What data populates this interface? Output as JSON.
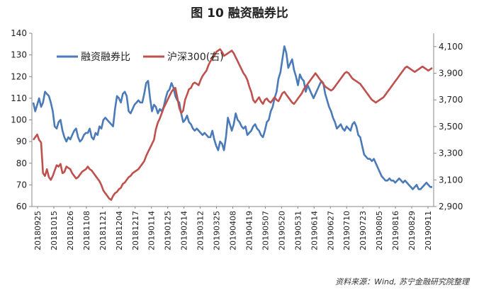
{
  "figure_title": "图 10  融资融券比",
  "source": "资料来源：Wind, 苏宁金融研究院整理",
  "colors": {
    "left_series": "#4a7ab7",
    "right_series": "#c0504d",
    "axis": "#888888",
    "text": "#222222"
  },
  "chart_data": {
    "type": "line",
    "title": "图 10  融资融券比",
    "left_axis": {
      "ylim": [
        60,
        140
      ],
      "ticks": [
        60,
        70,
        80,
        90,
        100,
        110,
        120,
        130,
        140
      ]
    },
    "right_axis": {
      "ylim": [
        2900,
        4200
      ],
      "ticks": [
        "2,900",
        "3,100",
        "3,300",
        "3,500",
        "3,700",
        "3,900",
        "4,100"
      ],
      "tick_values": [
        2900,
        3100,
        3300,
        3500,
        3700,
        3900,
        4100
      ]
    },
    "x_tick_labels": [
      "20180925",
      "20181015",
      "20181026",
      "20181108",
      "20181121",
      "20181204",
      "20181217",
      "20190114",
      "20190125",
      "20190214",
      "20190312",
      "20190325",
      "20190408",
      "20190419",
      "20190507",
      "20190520",
      "20190531",
      "20190614",
      "20190627",
      "20190710",
      "20190723",
      "20190805",
      "20190816",
      "20190829",
      "20190911"
    ],
    "legend": [
      "融资融券比",
      "沪深300(右)"
    ],
    "legend_position": "top-left",
    "series": [
      {
        "name": "融资融券比",
        "axis": "left",
        "values": [
          108,
          104,
          107,
          110,
          106,
          108,
          113,
          112,
          111,
          108,
          104,
          97,
          96,
          99,
          100,
          95,
          92,
          90,
          92,
          91,
          93,
          95,
          96,
          92,
          90,
          91,
          93,
          94,
          94,
          96,
          92,
          91,
          94,
          93,
          97,
          96,
          100,
          101,
          100,
          99,
          98,
          97,
          105,
          111,
          110,
          108,
          112,
          113,
          111,
          104,
          103,
          105,
          107,
          108,
          109,
          108,
          108,
          112,
          117,
          118,
          110,
          104,
          107,
          106,
          103,
          105,
          104,
          106,
          110,
          113,
          114,
          117,
          115,
          111,
          109,
          108,
          103,
          99,
          100,
          102,
          99,
          98,
          96,
          95,
          96,
          95,
          94,
          93,
          94,
          93,
          92,
          92,
          95,
          91,
          88,
          86,
          90,
          89,
          86,
          92,
          101,
          98,
          95,
          98,
          103,
          100,
          99,
          97,
          96,
          97,
          93,
          94,
          95,
          97,
          98,
          96,
          95,
          93,
          92,
          95,
          99,
          100,
          104,
          106,
          110,
          113,
          119,
          122,
          128,
          134,
          131,
          124,
          126,
          128,
          123,
          120,
          116,
          121,
          119,
          118,
          113,
          116,
          114,
          112,
          110,
          112,
          114,
          116,
          118,
          117,
          112,
          109,
          106,
          104,
          101,
          99,
          96,
          97,
          98,
          96,
          95,
          97,
          96,
          95,
          98,
          99,
          97,
          93,
          92,
          88,
          84,
          83,
          82,
          82,
          81,
          82,
          80,
          78,
          76,
          74,
          73,
          72,
          72,
          73,
          72,
          72,
          71,
          72,
          73,
          72,
          71,
          72,
          71,
          70,
          69,
          68,
          69,
          70,
          68,
          68,
          69,
          70,
          71,
          70,
          69,
          69
        ]
      },
      {
        "name": "沪深300(右)",
        "axis": "right",
        "values": [
          3400,
          3420,
          3440,
          3400,
          3380,
          3150,
          3130,
          3180,
          3120,
          3100,
          3130,
          3170,
          3210,
          3200,
          3220,
          3150,
          3160,
          3200,
          3190,
          3180,
          3150,
          3130,
          3110,
          3120,
          3140,
          3160,
          3170,
          3180,
          3200,
          3180,
          3170,
          3150,
          3130,
          3110,
          3090,
          3060,
          3020,
          3000,
          2980,
          2960,
          2950,
          2980,
          3000,
          3010,
          3030,
          3040,
          3070,
          3080,
          3100,
          3120,
          3130,
          3150,
          3160,
          3170,
          3180,
          3200,
          3220,
          3240,
          3280,
          3310,
          3340,
          3370,
          3400,
          3480,
          3530,
          3560,
          3600,
          3640,
          3670,
          3700,
          3730,
          3760,
          3780,
          3790,
          3720,
          3640,
          3600,
          3620,
          3700,
          3740,
          3780,
          3790,
          3820,
          3830,
          3820,
          3810,
          3850,
          3880,
          3900,
          3920,
          3960,
          3990,
          4010,
          4030,
          4060,
          4070,
          4080,
          4060,
          4030,
          4040,
          4050,
          4060,
          4070,
          4050,
          4020,
          3990,
          3960,
          3930,
          3900,
          3880,
          3850,
          3800,
          3760,
          3700,
          3680,
          3700,
          3720,
          3690,
          3670,
          3700,
          3710,
          3690,
          3680,
          3700,
          3720,
          3700,
          3690,
          3720,
          3750,
          3760,
          3740,
          3720,
          3700,
          3680,
          3670,
          3690,
          3710,
          3730,
          3750,
          3780,
          3800,
          3820,
          3840,
          3860,
          3880,
          3900,
          3880,
          3860,
          3840,
          3820,
          3800,
          3790,
          3780,
          3770,
          3780,
          3800,
          3820,
          3840,
          3860,
          3880,
          3900,
          3910,
          3900,
          3880,
          3860,
          3850,
          3840,
          3830,
          3820,
          3800,
          3780,
          3760,
          3740,
          3720,
          3700,
          3690,
          3680,
          3690,
          3700,
          3710,
          3720,
          3740,
          3760,
          3780,
          3800,
          3820,
          3840,
          3860,
          3880,
          3900,
          3920,
          3940,
          3950,
          3940,
          3930,
          3920,
          3910,
          3920,
          3930,
          3940,
          3950,
          3940,
          3930,
          3920,
          3930,
          3940
        ]
      }
    ]
  }
}
